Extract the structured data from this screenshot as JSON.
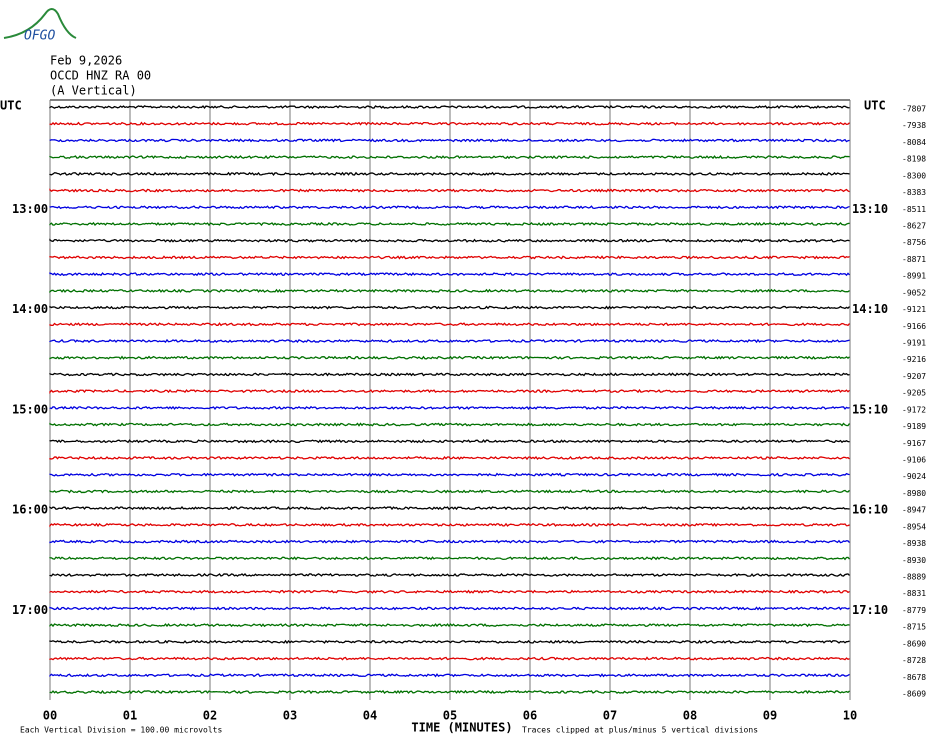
{
  "chart_data": {
    "type": "helicorder",
    "logo": "OFGO",
    "title": "Feb 9,2026",
    "station": "OCCD HNZ RA 00",
    "component": "(A Vertical)",
    "left_axis_label": "UTC",
    "right_axis_label": "UTC",
    "xlabel": "TIME (MINUTES)",
    "scale_note": "Each Vertical Division =  100.00 microvolts",
    "clip_note": "Traces clipped at plus/minus 5 vertical divisions",
    "xlim": [
      0,
      10
    ],
    "xticks": [
      {
        "value": 0,
        "label": "00"
      },
      {
        "value": 1,
        "label": "01"
      },
      {
        "value": 2,
        "label": "02"
      },
      {
        "value": 3,
        "label": "03"
      },
      {
        "value": 4,
        "label": "04"
      },
      {
        "value": 5,
        "label": "05"
      },
      {
        "value": 6,
        "label": "06"
      },
      {
        "value": 7,
        "label": "07"
      },
      {
        "value": 8,
        "label": "08"
      },
      {
        "value": 9,
        "label": "09"
      },
      {
        "value": 10,
        "label": "10"
      }
    ],
    "trace_colors": [
      "#000000",
      "#e00000",
      "#0000e0",
      "#007000"
    ],
    "left_labels": [
      null,
      null,
      null,
      null,
      null,
      null,
      "13:00",
      null,
      null,
      null,
      null,
      null,
      "14:00",
      null,
      null,
      null,
      null,
      null,
      "15:00",
      null,
      null,
      null,
      null,
      null,
      "16:00",
      null,
      null,
      null,
      null,
      null,
      "17:00",
      null,
      null,
      null,
      null,
      null
    ],
    "right_labels": [
      null,
      null,
      null,
      null,
      null,
      null,
      "13:10",
      null,
      null,
      null,
      null,
      null,
      "14:10",
      null,
      null,
      null,
      null,
      null,
      "15:10",
      null,
      null,
      null,
      null,
      null,
      "16:10",
      null,
      null,
      null,
      null,
      null,
      "17:10",
      null,
      null,
      null,
      null,
      null
    ],
    "row_values": [
      -7807,
      -7938,
      -8084,
      -8198,
      -8300,
      -8383,
      -8511,
      -8627,
      -8756,
      -8871,
      -8991,
      -9052,
      -9121,
      -9166,
      -9191,
      -9216,
      -9207,
      -9205,
      -9172,
      -9189,
      -9167,
      -9106,
      -9024,
      -8980,
      -8947,
      -8954,
      -8938,
      -8930,
      -8889,
      -8831,
      -8779,
      -8715,
      -8690,
      -8728,
      -8678,
      -8609
    ]
  }
}
